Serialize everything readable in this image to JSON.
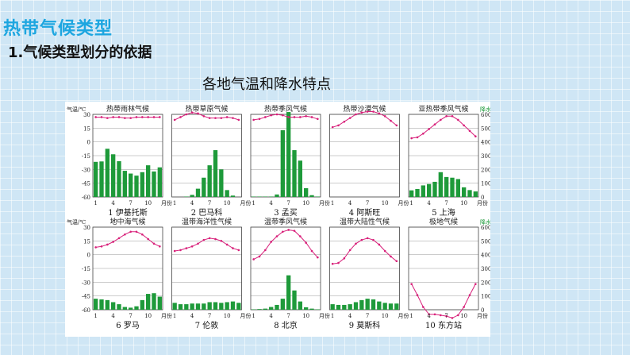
{
  "slide": {
    "title": "热带气候类型",
    "subtitle": "1.气候类型划分的依据",
    "caption": "各地气温和降水特点"
  },
  "figure": {
    "temp_axis_label": "气温/℃",
    "precip_axis_label": "降水量/mm",
    "temp_ticks": [
      "30",
      "15",
      "0",
      "-15",
      "-30",
      "-45",
      "-60"
    ],
    "precip_ticks": [
      "600",
      "500",
      "400",
      "300",
      "200",
      "100",
      "0"
    ],
    "month_ticks": [
      "1",
      "4",
      "7",
      "10",
      "月份"
    ],
    "colors": {
      "temp_line": "#d8207a",
      "bar": "#1e9a3a"
    }
  },
  "chart_data": [
    {
      "type": "bar",
      "title": "热带雨林气候",
      "station": "1 伊基托斯",
      "temperature": [
        27,
        27,
        26,
        27,
        27,
        26,
        26,
        27,
        27,
        27,
        27,
        27
      ],
      "precip": [
        255,
        258,
        350,
        310,
        260,
        190,
        170,
        155,
        180,
        230,
        185,
        215
      ]
    },
    {
      "type": "bar",
      "title": "热带草原气候",
      "station": "2 巴马科",
      "temperature": [
        24,
        27,
        30,
        32,
        31,
        28,
        26,
        26,
        26,
        27,
        26,
        24
      ],
      "precip": [
        0,
        0,
        3,
        15,
        60,
        140,
        230,
        340,
        200,
        50,
        10,
        0
      ]
    },
    {
      "type": "bar",
      "title": "热带季风气候",
      "station": "3 孟买",
      "temperature": [
        24,
        25,
        27,
        29,
        30,
        29,
        27,
        27,
        27,
        28,
        27,
        25
      ],
      "precip": [
        3,
        3,
        3,
        3,
        18,
        485,
        617,
        340,
        264,
        64,
        13,
        3
      ]
    },
    {
      "type": "bar",
      "title": "热带沙漠气候",
      "station": "4 阿斯旺",
      "temperature": [
        16,
        18,
        22,
        26,
        30,
        32,
        33,
        33,
        31,
        28,
        23,
        18
      ],
      "precip": [
        0,
        0,
        0,
        0,
        0,
        0,
        0,
        0,
        0,
        0,
        0,
        0
      ]
    },
    {
      "type": "bar",
      "title": "亚热带季风气候",
      "station": "5 上海",
      "temperature": [
        4,
        5,
        9,
        14,
        19,
        24,
        28,
        28,
        24,
        18,
        12,
        6
      ],
      "precip": [
        48,
        58,
        84,
        94,
        110,
        180,
        145,
        140,
        130,
        70,
        50,
        40
      ]
    },
    {
      "type": "bar",
      "title": "地中海气候",
      "station": "6 罗马",
      "temperature": [
        8,
        9,
        11,
        14,
        18,
        22,
        25,
        25,
        22,
        17,
        12,
        9
      ],
      "precip": [
        80,
        75,
        70,
        55,
        40,
        20,
        15,
        25,
        70,
        115,
        120,
        95
      ]
    },
    {
      "type": "bar",
      "title": "温带海洋性气候",
      "station": "7 伦敦",
      "temperature": [
        4,
        5,
        7,
        9,
        12,
        16,
        18,
        17,
        15,
        11,
        7,
        5
      ],
      "precip": [
        50,
        40,
        40,
        45,
        45,
        45,
        55,
        55,
        50,
        55,
        60,
        50
      ]
    },
    {
      "type": "bar",
      "title": "温带季风气候",
      "station": "8 北京",
      "temperature": [
        -5,
        -2,
        5,
        14,
        20,
        25,
        27,
        26,
        20,
        13,
        4,
        -3
      ],
      "precip": [
        3,
        5,
        8,
        20,
        35,
        80,
        250,
        140,
        60,
        18,
        8,
        3
      ]
    },
    {
      "type": "bar",
      "title": "温带大陆性气候",
      "station": "9 莫斯科",
      "temperature": [
        -10,
        -9,
        -4,
        5,
        12,
        16,
        18,
        16,
        11,
        4,
        -2,
        -7
      ],
      "precip": [
        40,
        35,
        35,
        40,
        55,
        70,
        80,
        75,
        60,
        50,
        45,
        45
      ]
    },
    {
      "type": "bar",
      "title": "极地气候",
      "station": "10 东方站",
      "temperature": [
        -32,
        -44,
        -57,
        -65,
        -65,
        -66,
        -67,
        -69,
        -66,
        -57,
        -44,
        -32
      ],
      "precip": [
        0,
        0,
        0,
        0,
        0,
        0,
        0,
        0,
        0,
        0,
        0,
        0
      ]
    }
  ]
}
